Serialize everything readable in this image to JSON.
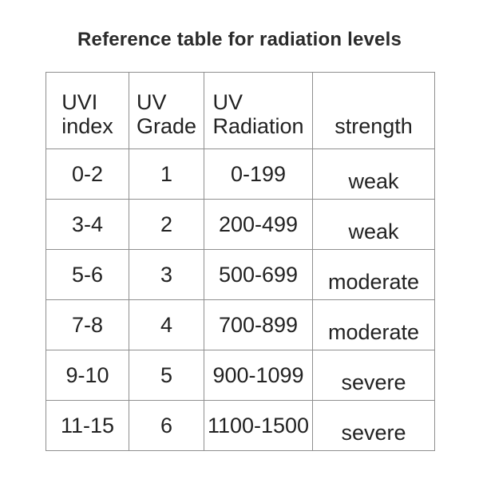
{
  "colors": {
    "background": "#ffffff",
    "text": "#222222",
    "title_text": "#2b2b2b",
    "border": "#8f8f8f"
  },
  "title": "Reference table for radiation levels",
  "chart_data": {
    "type": "table",
    "title": "Reference table for radiation levels",
    "columns": [
      "UVI index",
      "UV Grade",
      "UV Radiation",
      "strength"
    ],
    "header_lines": [
      [
        "UVI",
        "index"
      ],
      [
        "UV",
        "Grade"
      ],
      [
        "UV",
        "Radiation"
      ],
      [
        "strength"
      ]
    ],
    "rows": [
      [
        "0-2",
        "1",
        "0-199",
        "weak"
      ],
      [
        "3-4",
        "2",
        "200-499",
        "weak"
      ],
      [
        "5-6",
        "3",
        "500-699",
        "moderate"
      ],
      [
        "7-8",
        "4",
        "700-899",
        "moderate"
      ],
      [
        "9-10",
        "5",
        "900-1099",
        "severe"
      ],
      [
        "11-15",
        "6",
        "1100-1500",
        "severe"
      ]
    ]
  }
}
